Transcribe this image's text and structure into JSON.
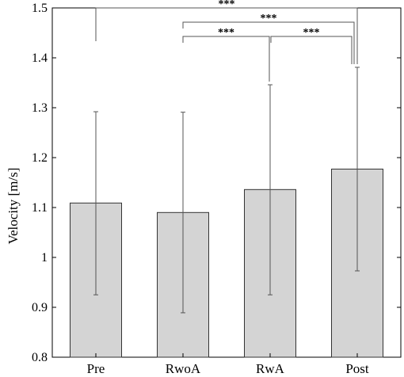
{
  "chart_data": {
    "type": "bar",
    "title": "",
    "xlabel": "",
    "ylabel": "Velocity [m/s]",
    "ylim": [
      0.8,
      1.5
    ],
    "y_ticks": [
      "0.8",
      "0.9",
      "1",
      "1.1",
      "1.2",
      "1.3",
      "1.4",
      "1.5"
    ],
    "categories": [
      "Pre",
      "RwoA",
      "RwA",
      "Post"
    ],
    "values": [
      1.109,
      1.09,
      1.136,
      1.177
    ],
    "error_upper": [
      1.292,
      1.291,
      1.346,
      1.381
    ],
    "error_lower": [
      0.925,
      0.889,
      0.925,
      0.973
    ],
    "grid": false,
    "significance": [
      {
        "from": "Pre",
        "to": "Post",
        "label": "***",
        "level": 1
      },
      {
        "from": "RwoA",
        "to": "Post",
        "label": "***",
        "level": 2
      },
      {
        "from": "RwoA",
        "to": "RwA",
        "label": "***",
        "level": 3
      },
      {
        "from": "RwA",
        "to": "Post",
        "label": "***",
        "level": 3
      }
    ],
    "colors": {
      "bar_fill": "#d4d4d4",
      "bar_stroke": "#333333",
      "axis": "#000000",
      "error": "#555555"
    }
  }
}
